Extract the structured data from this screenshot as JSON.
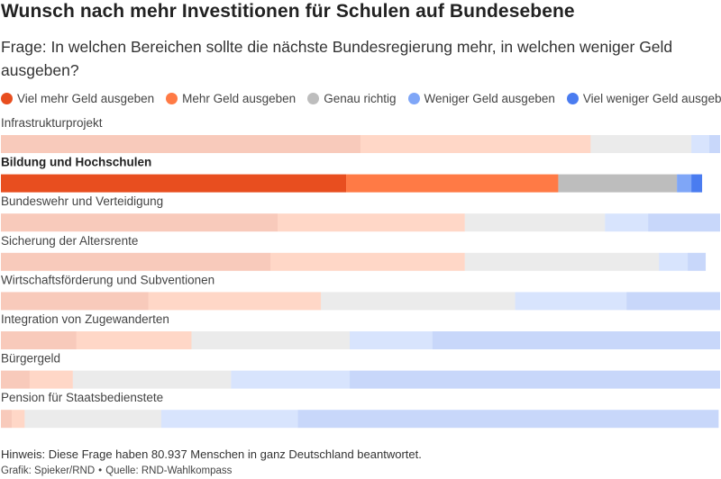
{
  "title": "Wunsch nach mehr Investitionen für Schulen auf Bundesebene",
  "subtitle": "Frage: In welchen Bereichen sollte die nächste Bundesregierung mehr, in welchen weniger Geld ausgeben?",
  "footer": {
    "note": "Hinweis: Diese Frage haben 80.937 Menschen in ganz Deutschland beantwortet.",
    "credit_left": "Grafik: Spieker/RND",
    "separator": "•",
    "credit_right": "Quelle: RND-Wahlkompass"
  },
  "chart_data": {
    "type": "bar",
    "orientation": "horizontal",
    "stacked": true,
    "highlight_category": "Bildung und Hochschulen",
    "categories": [
      "Infrastrukturprojekt",
      "Bildung und Hochschulen",
      "Bundeswehr und Verteidigung",
      "Sicherung der Altersrente",
      "Wirtschaftsförderung und Subventionen",
      "Integration von Zugewanderten",
      "Bürgergeld",
      "Pension für Staatsbedienstete"
    ],
    "series": [
      {
        "name": "Viel mehr Geld ausgeben",
        "color": "#e84e1f",
        "values": [
          50,
          48,
          38.5,
          37.5,
          20.5,
          10.5,
          4,
          1.5
        ]
      },
      {
        "name": "Mehr Geld ausgeben",
        "color": "#ff7a45",
        "values": [
          32,
          29.5,
          26,
          27,
          24,
          16,
          6,
          1.8
        ]
      },
      {
        "name": "Genau richtig",
        "color": "#bdbdbd",
        "values": [
          14,
          16.5,
          19.5,
          27,
          27,
          22,
          22,
          19
        ]
      },
      {
        "name": "Weniger Geld ausgeben",
        "color": "#7fa6f7",
        "values": [
          2.5,
          2,
          6,
          4,
          15.5,
          11.5,
          16.5,
          19
        ]
      },
      {
        "name": "Viel weniger Geld ausgeben",
        "color": "#4a7cf0",
        "values": [
          1.5,
          1.5,
          10,
          2.5,
          13,
          40,
          51.5,
          58.5
        ]
      }
    ],
    "xlim": [
      0,
      100
    ]
  }
}
